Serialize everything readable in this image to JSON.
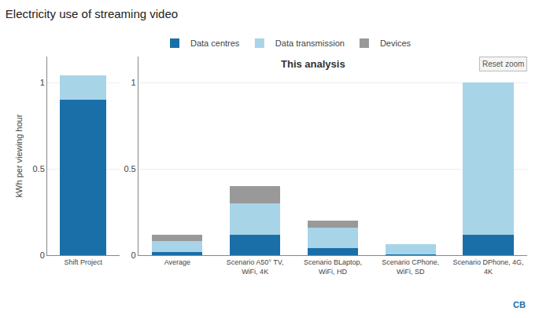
{
  "chart_data": [
    {
      "type": "bar",
      "stacked": true,
      "title": "Electricity use of streaming video",
      "ylabel": "kWh per viewing hour",
      "legend": "top",
      "grid": true,
      "categories": [
        "Shift Project"
      ],
      "series": [
        {
          "name": "Data centres",
          "color": "#1a6fa8",
          "values": [
            0.9
          ]
        },
        {
          "name": "Data transmission",
          "color": "#a8d4e8",
          "values": [
            0.14
          ]
        },
        {
          "name": "Devices",
          "color": "#999999",
          "values": [
            0.0
          ]
        }
      ],
      "ylim": [
        0,
        1.15
      ],
      "yticks": [
        0,
        0.5,
        1.0
      ]
    },
    {
      "type": "bar",
      "stacked": true,
      "grid": true,
      "categories": [
        "Average",
        "Scenario A50° TV,\nWiFi, 4K",
        "Scenario BLaptop,\nWiFi, HD",
        "Scenario CPhone,\nWiFi, SD",
        "Scenario DPhone, 4G,\n4K"
      ],
      "series": [
        {
          "name": "Data centres",
          "color": "#1a6fa8",
          "values": [
            0.02,
            0.12,
            0.04,
            0.005,
            0.12
          ]
        },
        {
          "name": "Data transmission",
          "color": "#a8d4e8",
          "values": [
            0.06,
            0.18,
            0.12,
            0.06,
            0.88
          ]
        },
        {
          "name": "Devices",
          "color": "#999999",
          "values": [
            0.04,
            0.1,
            0.04,
            0.0,
            0.0
          ]
        }
      ],
      "ylim": [
        0,
        1.15
      ],
      "yticks": [
        0,
        0.5,
        1.0
      ],
      "annotations": [
        "This analysis",
        "Reset zoom",
        "CB"
      ]
    }
  ]
}
